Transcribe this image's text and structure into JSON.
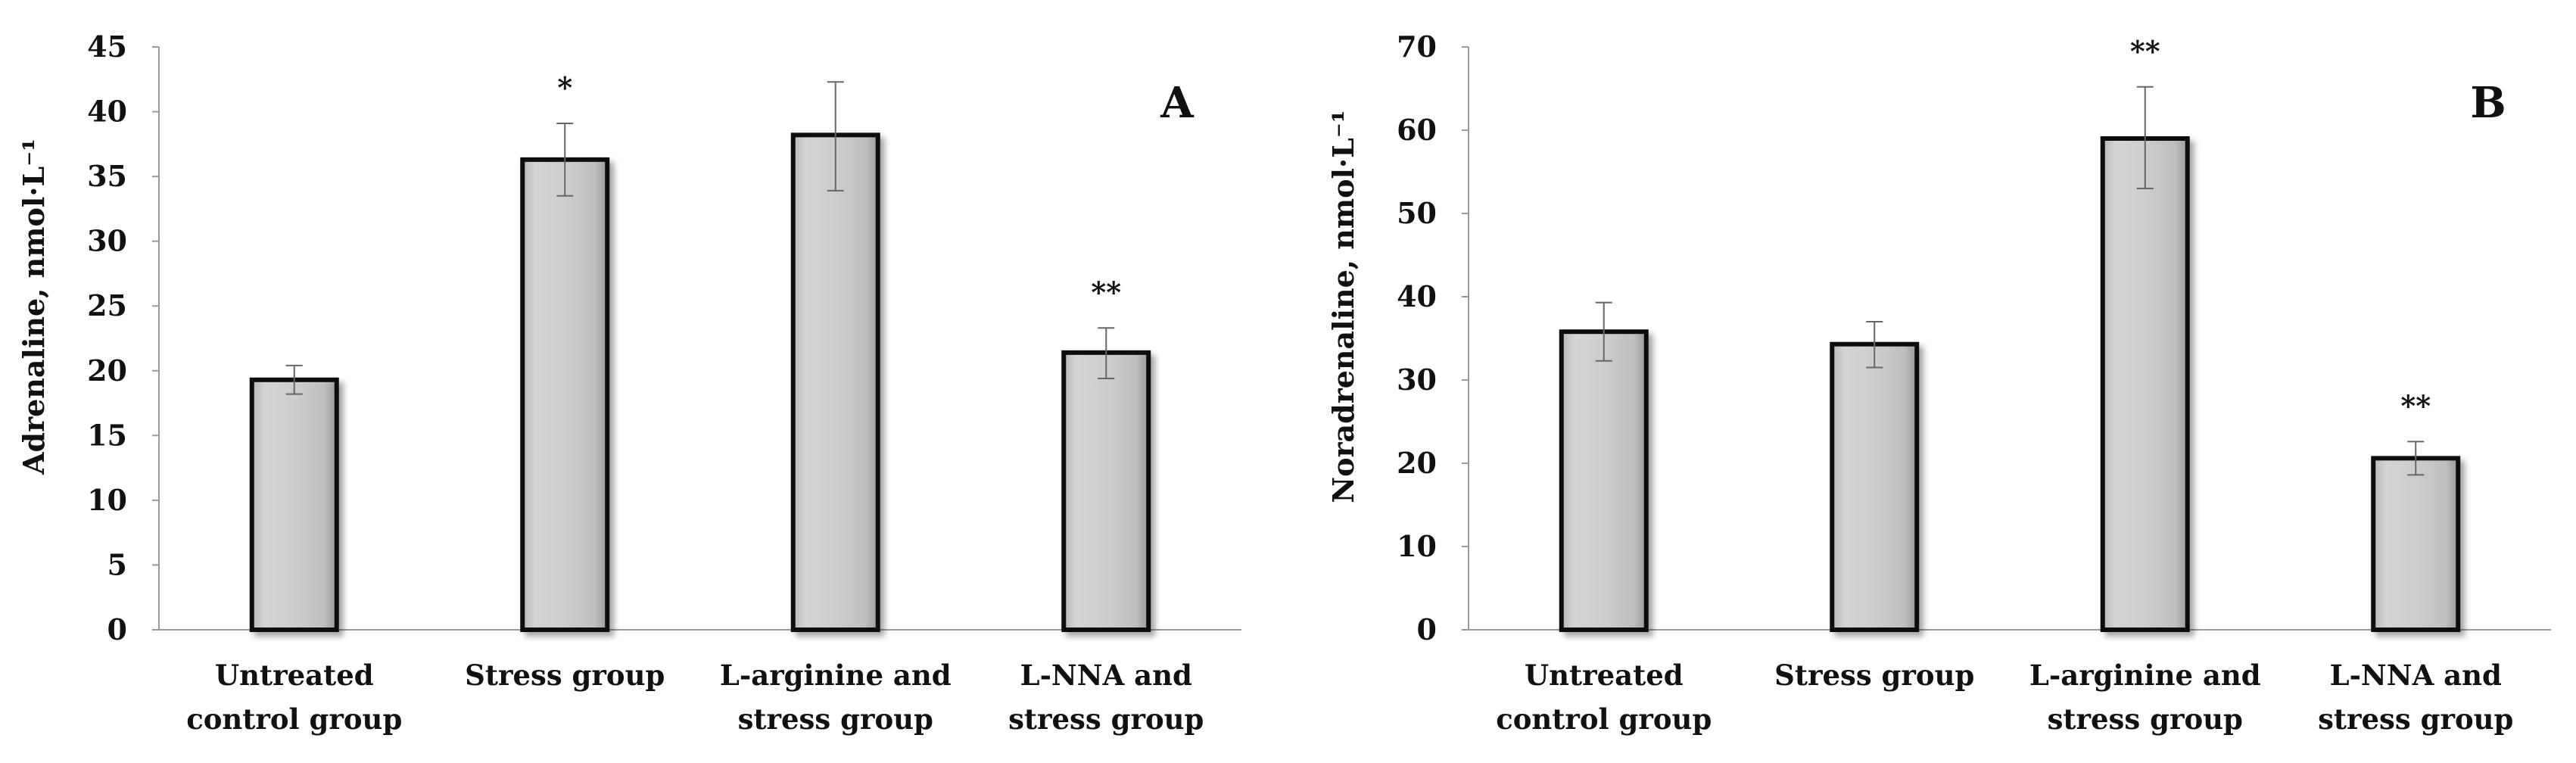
{
  "chart_data": [
    {
      "type": "bar",
      "panel_label": "A",
      "ylabel": "Adrenaline, nmol·L⁻¹",
      "ylim": [
        0,
        45
      ],
      "ytick_step": 5,
      "categories": [
        [
          "Untreated",
          "control group"
        ],
        [
          "Stress group"
        ],
        [
          "L-arginine and",
          "stress group"
        ],
        [
          "L-NNA and",
          "stress group"
        ]
      ],
      "values": [
        19.3,
        36.3,
        38.2,
        21.4
      ],
      "error_low": [
        18.2,
        33.5,
        33.9,
        19.4
      ],
      "error_high": [
        20.4,
        39.1,
        42.3,
        23.3
      ],
      "annotations": [
        "",
        "*",
        "",
        "**"
      ],
      "bar_color": "#c8c8c8"
    },
    {
      "type": "bar",
      "panel_label": "B",
      "ylabel": "Noradrenaline, nmol·L⁻¹",
      "ylim": [
        0,
        70
      ],
      "ytick_step": 10,
      "categories": [
        [
          "Untreated",
          "control group"
        ],
        [
          "Stress group"
        ],
        [
          "L-arginine and",
          "stress group"
        ],
        [
          "L-NNA and",
          "stress group"
        ]
      ],
      "values": [
        35.8,
        34.3,
        59.0,
        20.6
      ],
      "error_low": [
        32.3,
        31.5,
        53.0,
        18.6
      ],
      "error_high": [
        39.3,
        37.0,
        65.2,
        22.6
      ],
      "annotations": [
        "",
        "",
        "**",
        "**"
      ],
      "bar_color": "#c8c8c8"
    }
  ]
}
